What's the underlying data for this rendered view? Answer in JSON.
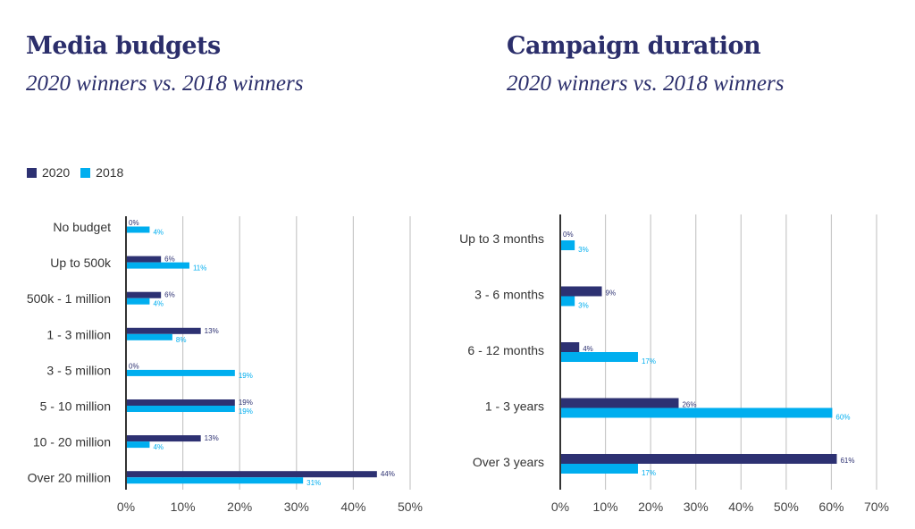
{
  "colors": {
    "s2020": "#2d3172",
    "s2018": "#00aeef"
  },
  "chart_data": [
    {
      "type": "bar",
      "orientation": "horizontal",
      "title": "Media budgets",
      "subtitle": "2020 winners vs. 2018 winners",
      "categories": [
        "No budget",
        "Up to 500k",
        "500k - 1 million",
        "1 - 3 million",
        "3 - 5 million",
        "5 - 10 million",
        "10 - 20 million",
        "Over 20 million"
      ],
      "series": [
        {
          "name": "2020",
          "values": [
            0,
            6,
            6,
            13,
            0,
            19,
            13,
            44
          ],
          "labels": [
            "0%",
            "6%",
            "6%",
            "13%",
            "0%",
            "19%",
            "13%",
            "44%"
          ]
        },
        {
          "name": "2018",
          "values": [
            4,
            11,
            4,
            8,
            19,
            19,
            4,
            31
          ],
          "labels": [
            "4%",
            "11%",
            "4%",
            "8%",
            "19%",
            "19%",
            "4%",
            "31%"
          ]
        }
      ],
      "xlim": [
        0,
        50
      ],
      "ticks": [
        "0%",
        "10%",
        "20%",
        "30%",
        "40%",
        "50%"
      ],
      "grid": true,
      "legend": "top-left"
    },
    {
      "type": "bar",
      "orientation": "horizontal",
      "title": "Campaign duration",
      "subtitle": "2020 winners vs. 2018 winners",
      "categories": [
        "Up to 3 months",
        "3 - 6 months",
        "6 - 12 months",
        "1 - 3 years",
        "Over 3 years"
      ],
      "series": [
        {
          "name": "2020",
          "values": [
            0,
            9,
            4,
            26,
            61
          ],
          "labels": [
            "0%",
            "9%",
            "4%",
            "26%",
            "61%"
          ]
        },
        {
          "name": "2018",
          "values": [
            3,
            3,
            17,
            60,
            17
          ],
          "labels": [
            "3%",
            "3%",
            "17%",
            "60%",
            "17%"
          ]
        }
      ],
      "xlim": [
        0,
        70
      ],
      "ticks": [
        "0%",
        "10%",
        "20%",
        "30%",
        "40%",
        "50%",
        "60%",
        "70%"
      ],
      "grid": true
    }
  ],
  "legend": {
    "items": [
      "2020",
      "2018"
    ]
  }
}
